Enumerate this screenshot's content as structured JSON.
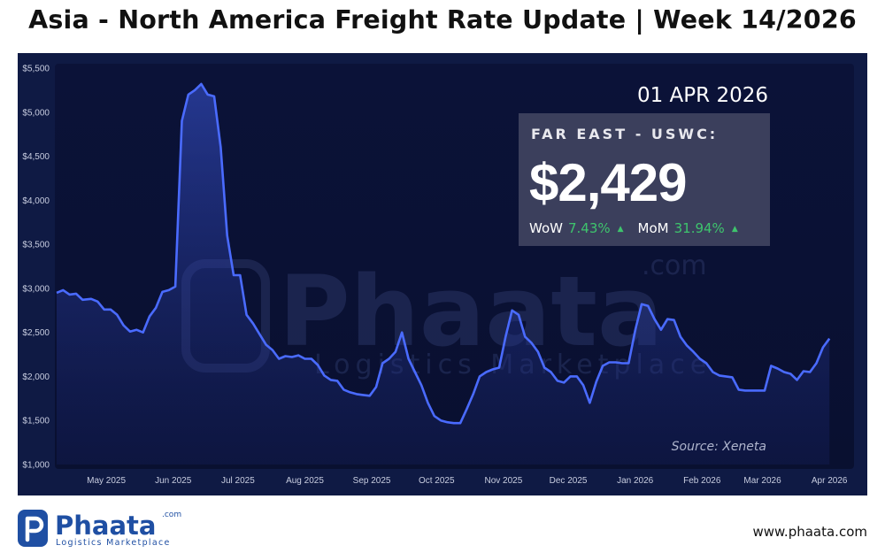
{
  "header": {
    "title": "Asia - North America Freight Rate Update | Week 14/2026"
  },
  "rate_card": {
    "date": "01 APR 2026",
    "route": "FAR EAST - USWC:",
    "value": "$2,429",
    "wow_label": "WoW",
    "wow_value": "7.43%",
    "mom_label": "MoM",
    "mom_value": "31.94%",
    "arrow_icon": "triangle-up-icon"
  },
  "source": "Source: Xeneta",
  "watermark": {
    "brand": "Phaata",
    "suffix": ".com",
    "tagline": "Logistics Marketplace"
  },
  "footer": {
    "logo_brand": "Phaata",
    "logo_suffix": ".com",
    "logo_tagline": "Logistics Marketplace",
    "url": "www.phaata.com"
  },
  "colors": {
    "background": "#ffffff",
    "chart_bg": "#0f1a44",
    "plot_bg": "#0a1034",
    "line": "#4a6bff",
    "positive": "#3ec46d",
    "brand": "#1f4fa3"
  },
  "chart_data": {
    "type": "area",
    "title": "",
    "xlabel": "",
    "ylabel": "",
    "ylim": [
      1000,
      5500
    ],
    "yticks": [
      "$1,000",
      "$1,500",
      "$2,000",
      "$2,500",
      "$3,000",
      "$3,500",
      "$4,000",
      "$4,500",
      "$5,000",
      "$5,500"
    ],
    "ytick_values": [
      1000,
      1500,
      2000,
      2500,
      3000,
      3500,
      4000,
      4500,
      5000,
      5500
    ],
    "xticks": [
      "May 2025",
      "Jun 2025",
      "Jul 2025",
      "Aug 2025",
      "Sep 2025",
      "Oct 2025",
      "Nov 2025",
      "Dec 2025",
      "Jan 2026",
      "Feb 2026",
      "Mar 2026",
      "Apr 2026"
    ],
    "xtick_dates": [
      "2025-05-01",
      "2025-06-01",
      "2025-07-01",
      "2025-08-01",
      "2025-09-01",
      "2025-10-01",
      "2025-11-01",
      "2025-12-01",
      "2026-01-01",
      "2026-02-01",
      "2026-03-01",
      "2026-04-01"
    ],
    "x_start": "2025-04-08",
    "x_end": "2026-04-12",
    "grid": false,
    "series": [
      {
        "name": "",
        "x": [
          "2025-04-08",
          "2025-04-11",
          "2025-04-14",
          "2025-04-17",
          "2025-04-20",
          "2025-04-24",
          "2025-04-27",
          "2025-04-30",
          "2025-05-03",
          "2025-05-06",
          "2025-05-09",
          "2025-05-12",
          "2025-05-15",
          "2025-05-18",
          "2025-05-21",
          "2025-05-24",
          "2025-05-27",
          "2025-05-30",
          "2025-06-02",
          "2025-06-05",
          "2025-06-08",
          "2025-06-11",
          "2025-06-14",
          "2025-06-17",
          "2025-06-20",
          "2025-06-23",
          "2025-06-26",
          "2025-06-29",
          "2025-07-02",
          "2025-07-05",
          "2025-07-08",
          "2025-07-11",
          "2025-07-14",
          "2025-07-17",
          "2025-07-20",
          "2025-07-23",
          "2025-07-26",
          "2025-07-29",
          "2025-08-01",
          "2025-08-04",
          "2025-08-07",
          "2025-08-10",
          "2025-08-13",
          "2025-08-16",
          "2025-08-19",
          "2025-08-22",
          "2025-08-25",
          "2025-08-28",
          "2025-08-31",
          "2025-09-03",
          "2025-09-06",
          "2025-09-09",
          "2025-09-12",
          "2025-09-15",
          "2025-09-18",
          "2025-09-21",
          "2025-09-24",
          "2025-09-27",
          "2025-09-30",
          "2025-10-03",
          "2025-10-06",
          "2025-10-09",
          "2025-10-12",
          "2025-10-15",
          "2025-10-18",
          "2025-10-21",
          "2025-10-24",
          "2025-10-27",
          "2025-10-30",
          "2025-11-02",
          "2025-11-05",
          "2025-11-08",
          "2025-11-11",
          "2025-11-14",
          "2025-11-17",
          "2025-11-20",
          "2025-11-23",
          "2025-11-26",
          "2025-11-29",
          "2025-12-02",
          "2025-12-05",
          "2025-12-08",
          "2025-12-11",
          "2025-12-14",
          "2025-12-17",
          "2025-12-20",
          "2025-12-23",
          "2025-12-26",
          "2025-12-29",
          "2026-01-01",
          "2026-01-04",
          "2026-01-07",
          "2026-01-10",
          "2026-01-13",
          "2026-01-16",
          "2026-01-19",
          "2026-01-22",
          "2026-01-25",
          "2026-01-28",
          "2026-01-31",
          "2026-02-03",
          "2026-02-06",
          "2026-02-09",
          "2026-02-12",
          "2026-02-15",
          "2026-02-18",
          "2026-02-21",
          "2026-02-24",
          "2026-02-27",
          "2026-03-02",
          "2026-03-05",
          "2026-03-08",
          "2026-03-11",
          "2026-03-14",
          "2026-03-17",
          "2026-03-20",
          "2026-03-23",
          "2026-03-26",
          "2026-03-29",
          "2026-04-01"
        ],
        "y": [
          2950,
          2980,
          2930,
          2940,
          2870,
          2880,
          2850,
          2760,
          2760,
          2700,
          2580,
          2510,
          2530,
          2500,
          2680,
          2780,
          2960,
          2980,
          3020,
          4900,
          5200,
          5250,
          5320,
          5200,
          5180,
          4600,
          3600,
          3150,
          3150,
          2700,
          2600,
          2480,
          2360,
          2300,
          2200,
          2230,
          2220,
          2240,
          2200,
          2200,
          2130,
          2010,
          1960,
          1950,
          1850,
          1820,
          1800,
          1790,
          1780,
          1880,
          2150,
          2200,
          2280,
          2500,
          2200,
          2050,
          1900,
          1700,
          1550,
          1500,
          1480,
          1470,
          1470,
          1630,
          1800,
          2000,
          2050,
          2080,
          2100,
          2450,
          2750,
          2700,
          2450,
          2380,
          2280,
          2100,
          2050,
          1950,
          1930,
          2000,
          2000,
          1900,
          1700,
          1940,
          2120,
          2160,
          2160,
          2150,
          2150,
          2520,
          2820,
          2800,
          2650,
          2530,
          2650,
          2640,
          2450,
          2350,
          2280,
          2200,
          2150,
          2050,
          2010,
          2000,
          1990,
          1850,
          1840,
          1840,
          1840,
          1840,
          2120,
          2090,
          2050,
          2030,
          1960,
          2060,
          2050,
          2150,
          2330,
          2429
        ]
      }
    ]
  }
}
